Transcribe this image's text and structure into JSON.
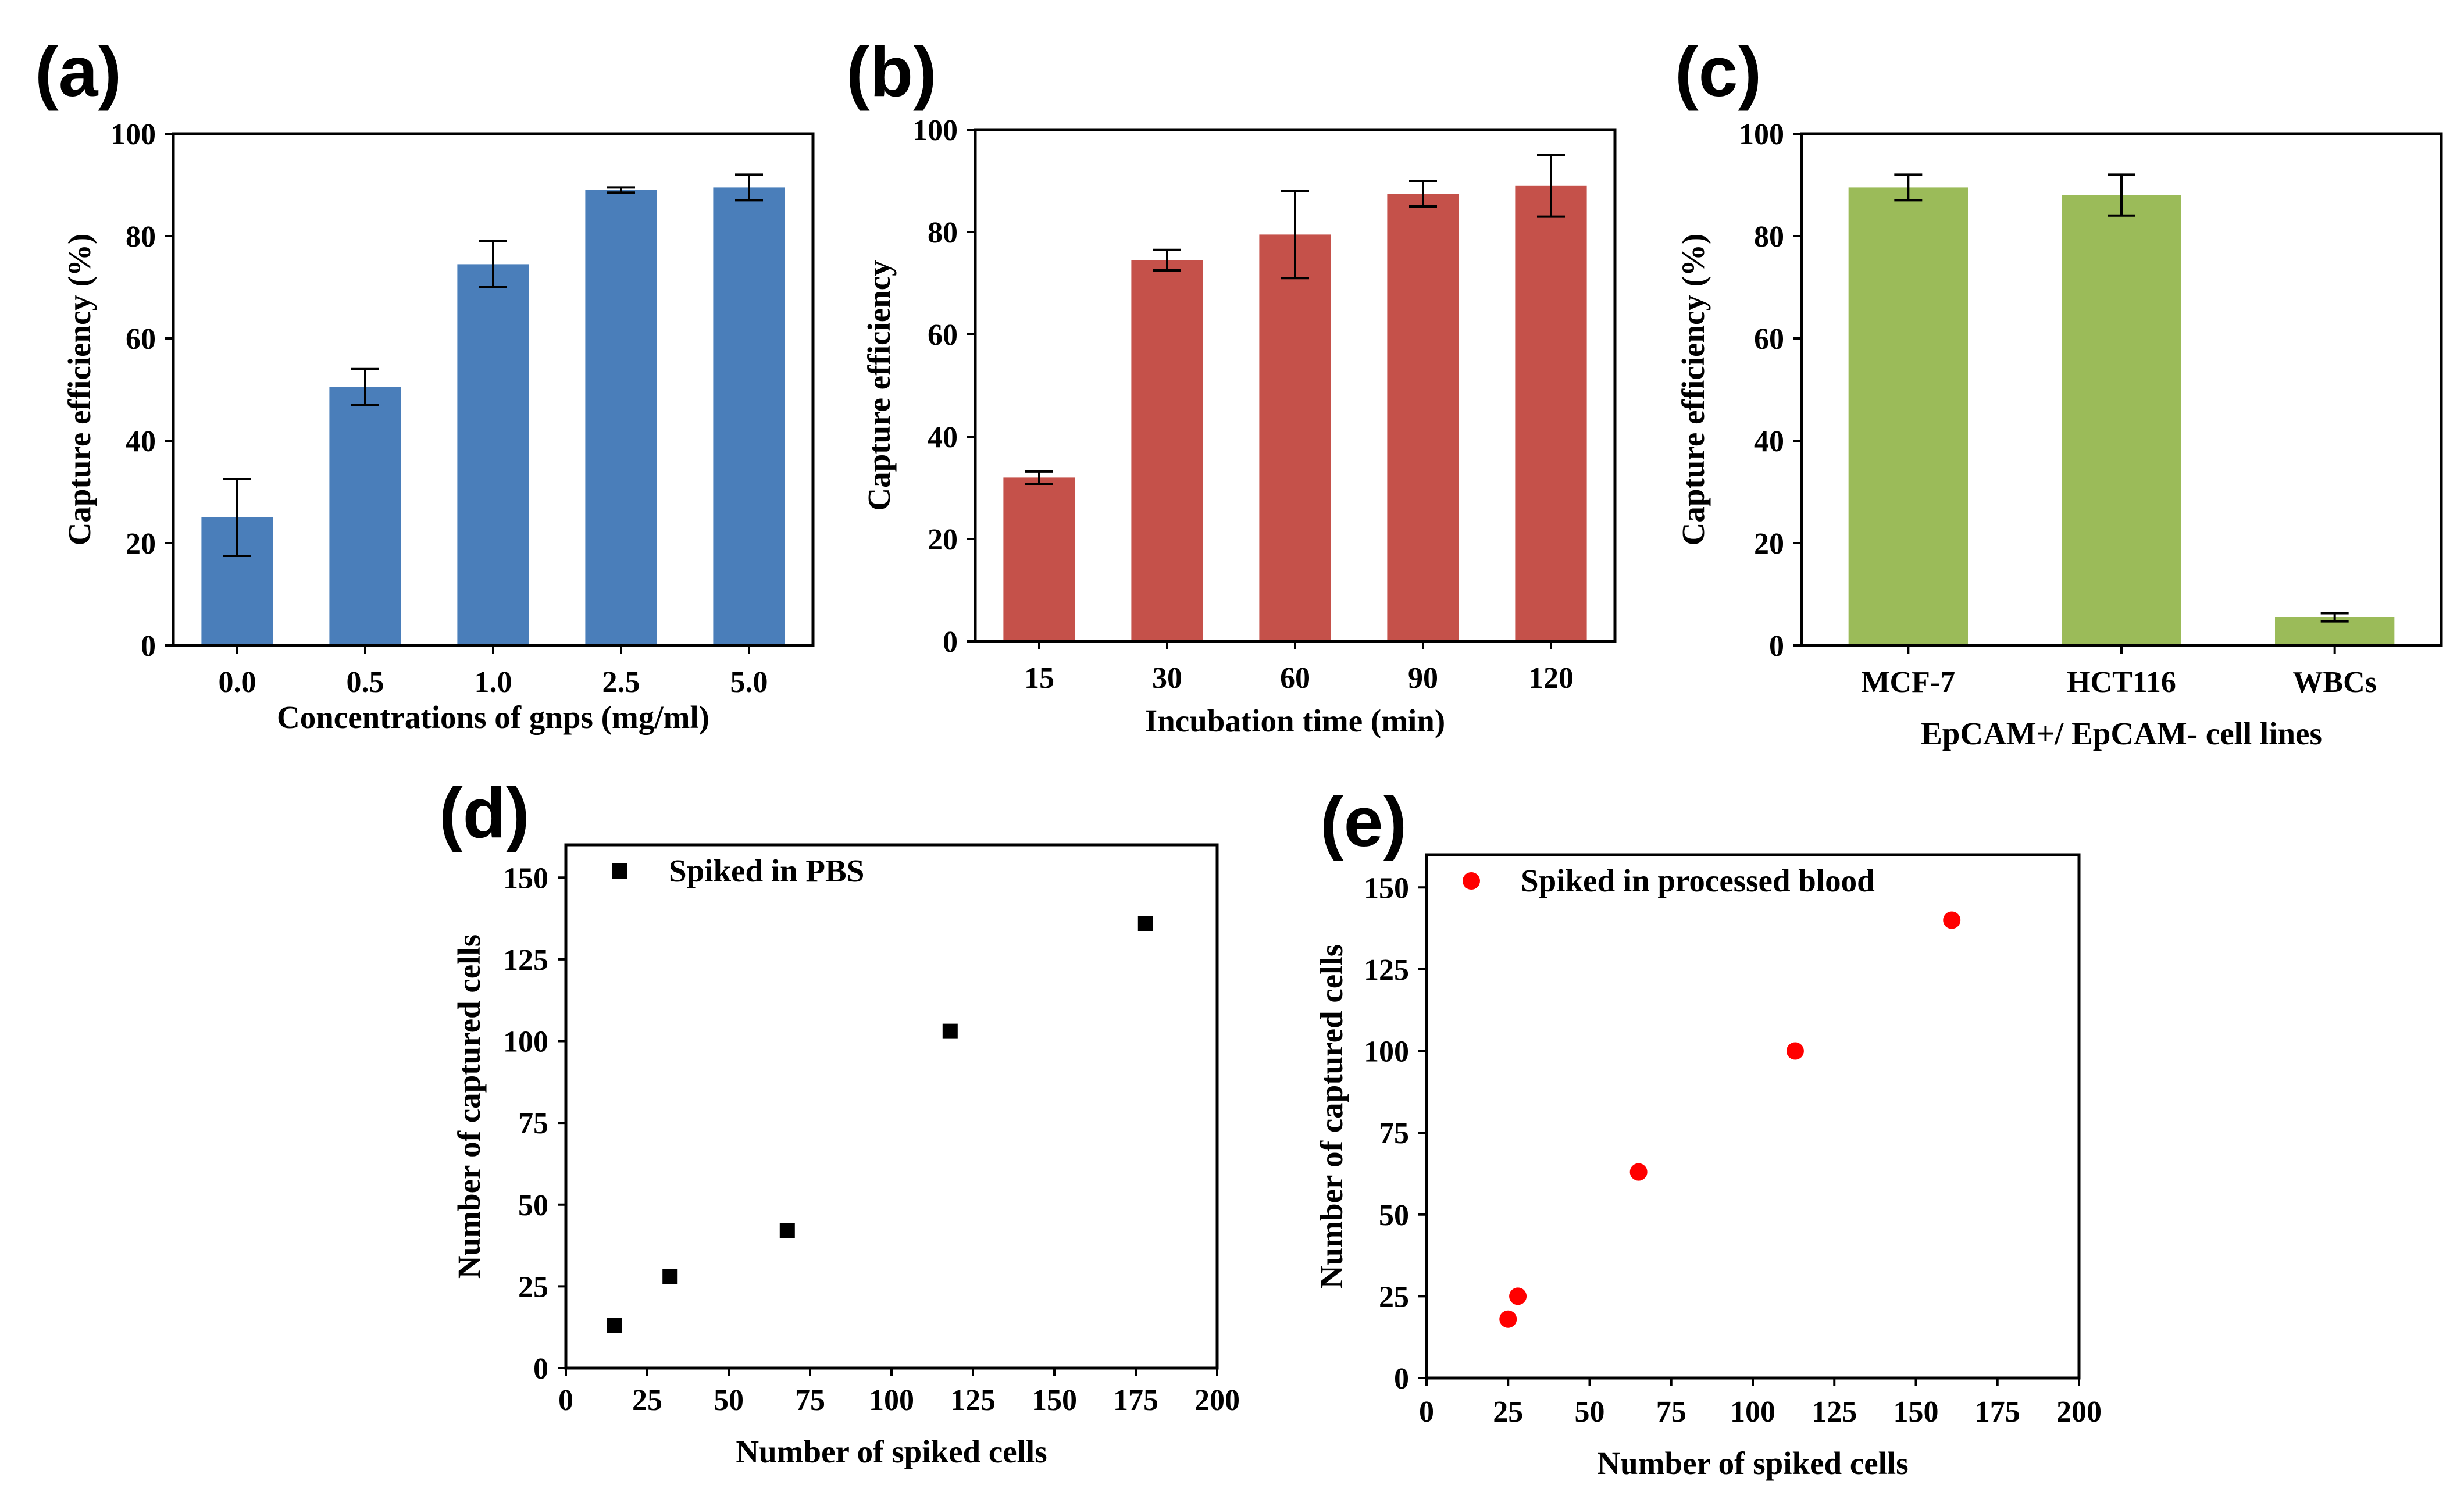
{
  "chart_data": [
    {
      "panel": "(a)",
      "type": "bar",
      "color": "#4a7eba",
      "categories": [
        "0.0",
        "0.5",
        "1.0",
        "2.5",
        "5.0"
      ],
      "values": [
        25,
        50.5,
        74.5,
        89,
        89.5
      ],
      "errors": [
        7.5,
        3.5,
        4.5,
        0.5,
        2.5
      ],
      "title": "",
      "xlabel": "Concentrations of gnps (mg/ml)",
      "ylabel": "Capture efficiency (%)",
      "ylim": [
        0,
        100
      ],
      "yticks": [
        "0",
        "20",
        "40",
        "60",
        "80",
        "100"
      ]
    },
    {
      "panel": "(b)",
      "type": "bar",
      "color": "#c5514a",
      "categories": [
        "15",
        "30",
        "60",
        "90",
        "120"
      ],
      "values": [
        32,
        74.5,
        79.5,
        87.5,
        89
      ],
      "errors": [
        1.2,
        2,
        8.5,
        2.5,
        6
      ],
      "title": "",
      "xlabel": "Incubation time (min)",
      "ylabel": "Capture efficiency",
      "ylim": [
        0,
        100
      ],
      "yticks": [
        "0",
        "20",
        "40",
        "60",
        "80",
        "100"
      ]
    },
    {
      "panel": "(c)",
      "type": "bar",
      "color": "#9bbb59",
      "categories": [
        "MCF-7",
        "HCT116",
        "WBCs"
      ],
      "values": [
        89.5,
        88,
        5.5
      ],
      "errors": [
        2.5,
        4,
        0.8
      ],
      "title": "",
      "xlabel": "EpCAM+/ EpCAM- cell lines",
      "ylabel": "Capture efficiency (%)",
      "ylim": [
        0,
        100
      ],
      "yticks": [
        "0",
        "20",
        "40",
        "60",
        "80",
        "100"
      ]
    },
    {
      "panel": "(d)",
      "type": "scatter",
      "marker": "square",
      "color": "#000000",
      "legend": "Spiked in PBS",
      "x": [
        15,
        32,
        68,
        118,
        178
      ],
      "y": [
        13,
        28,
        42,
        103,
        136
      ],
      "xlabel": "Number of spiked cells",
      "ylabel": "Number of captured cells",
      "xlim": [
        0,
        200
      ],
      "ylim": [
        0,
        160
      ],
      "xticks": [
        "0",
        "25",
        "50",
        "75",
        "100",
        "125",
        "150",
        "175",
        "200"
      ],
      "yticks": [
        "0",
        "25",
        "50",
        "75",
        "100",
        "125",
        "150"
      ]
    },
    {
      "panel": "(e)",
      "type": "scatter",
      "marker": "circle",
      "color": "#ff0000",
      "legend": "Spiked in processed  blood",
      "x": [
        25,
        28,
        65,
        113,
        161
      ],
      "y": [
        18,
        25,
        63,
        100,
        140
      ],
      "xlabel": "Number of spiked cells",
      "ylabel": "Number of captured cells",
      "xlim": [
        0,
        200
      ],
      "ylim": [
        0,
        160
      ],
      "xticks": [
        "0",
        "25",
        "50",
        "75",
        "100",
        "125",
        "150",
        "175",
        "200"
      ],
      "yticks": [
        "0",
        "25",
        "50",
        "75",
        "100",
        "125",
        "150"
      ]
    }
  ]
}
